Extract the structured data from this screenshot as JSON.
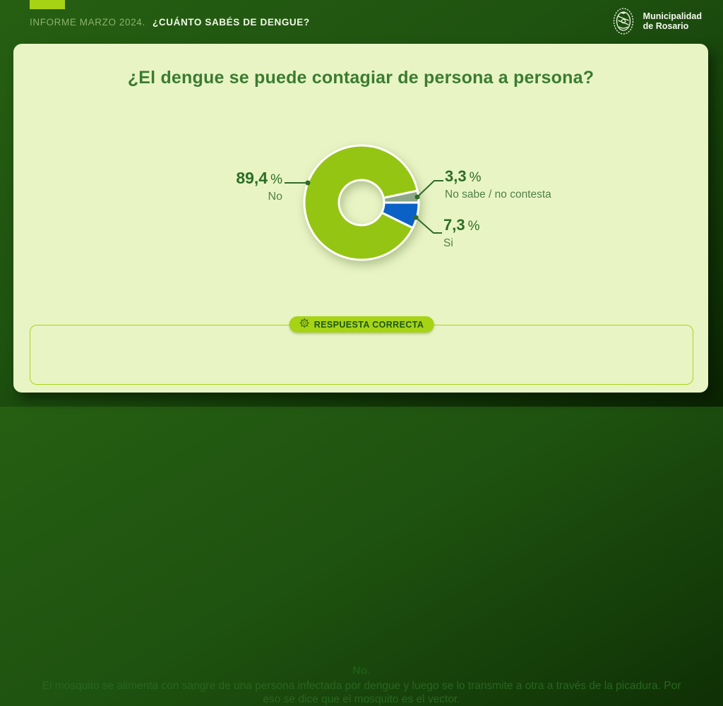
{
  "header": {
    "report_label": "INFORME MARZO 2024.",
    "report_title": "¿CUÁNTO SABÉS DE DENGUE?",
    "logo": {
      "icon": "municipality-crest-icon",
      "line1": "Municipalidad",
      "line2": "de Rosario"
    }
  },
  "question": {
    "title": "¿El dengue se puede contagiar de persona a persona?"
  },
  "chart_data": {
    "type": "pie",
    "donut": true,
    "title": "¿El dengue se puede contagiar de persona a persona?",
    "unit": "%",
    "categories": [
      "No",
      "No sabe / no contesta",
      "Si"
    ],
    "values": [
      89.4,
      3.3,
      7.3
    ],
    "slices": [
      {
        "label": "No",
        "value": 89.4,
        "value_label": "89,4",
        "color": "#95c513",
        "callout_side": "left"
      },
      {
        "label": "No sabe / no contesta",
        "value": 3.3,
        "value_label": "3,3",
        "color": "#8ea887",
        "callout_side": "right"
      },
      {
        "label": "Si",
        "value": 7.3,
        "value_label": "7,3",
        "color": "#0b61c6",
        "callout_side": "right"
      }
    ],
    "start_angle_deg": 26.2,
    "legend_position": "callout-labels",
    "grid": false
  },
  "answer": {
    "badge_icon": "rosette-seal-icon",
    "badge_label": "RESPUESTA CORRECTA",
    "answer_word": "No.",
    "explanation": "El mosquito se alimenta con sangre de una persona infectada por dengue y luego se lo transmite a otra a través de la picadura. Por eso se dice que el mosquito es el vector."
  },
  "colors": {
    "background_dark_green": "#1e5210",
    "card_bg": "#e9f4c5",
    "accent_lime": "#a7d315",
    "title_green": "#3a7c31",
    "value_label_green": "#2c6e27",
    "category_label_green": "#4f8047",
    "leader_line_green": "#2e6b28",
    "slice_no": "#95c513",
    "slice_no_sabe": "#8ea887",
    "slice_si": "#0b61c6",
    "badge_text_green": "#1d5717",
    "explanation_text_green": "#28661f",
    "header_muted_green": "#8bb26e",
    "white": "#ffffff"
  }
}
